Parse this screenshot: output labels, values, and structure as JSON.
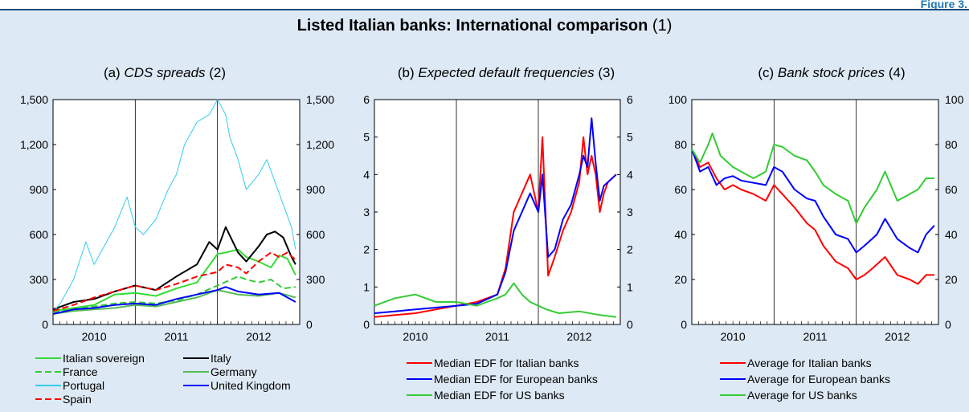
{
  "figure_label": "Figure 3.",
  "title": {
    "bold": "Listed Italian banks: International comparison",
    "suffix": "(1)"
  },
  "panels": [
    {
      "title_prefix": "(a)",
      "title_italic": "CDS spreads",
      "title_suffix": "(2)"
    },
    {
      "title_prefix": "(b)",
      "title_italic": "Expected default frequencies",
      "title_suffix": "(3)"
    },
    {
      "title_prefix": "(c)",
      "title_italic": "Bank stock prices",
      "title_suffix": "(4)"
    }
  ],
  "colors": {
    "background": "#dde9f5",
    "rule": "#1b4d7a",
    "red": "#ff0000",
    "blue": "#0000ff",
    "green": "#33cc33",
    "black": "#000000",
    "cyan": "#33ccee",
    "light_green": "#55dd55"
  },
  "chart_data": [
    {
      "type": "line",
      "title": "(a) CDS spreads (2)",
      "xlim": [
        2009.5,
        2012.5
      ],
      "ylim": [
        0,
        1500
      ],
      "yticks": [
        "0",
        "300",
        "600",
        "900",
        "1,200",
        "1,500"
      ],
      "right_yticks": [
        "0",
        "300",
        "600",
        "900",
        "1,200",
        "1,500"
      ],
      "xticks": [
        "2010",
        "2011",
        "2012"
      ],
      "grid": true,
      "legend_position": "bottom",
      "series": [
        {
          "name": "Italian sovereign",
          "color": "#33dd33",
          "dash": "solid",
          "x": [
            2009.5,
            2009.75,
            2010.0,
            2010.25,
            2010.5,
            2010.75,
            2011.0,
            2011.25,
            2011.5,
            2011.6,
            2011.75,
            2011.85,
            2012.0,
            2012.15,
            2012.25,
            2012.35,
            2012.45
          ],
          "values": [
            90,
            110,
            130,
            200,
            210,
            190,
            240,
            280,
            470,
            480,
            500,
            450,
            420,
            380,
            460,
            440,
            330
          ]
        },
        {
          "name": "Italy",
          "color": "#000000",
          "dash": "solid",
          "x": [
            2009.5,
            2009.75,
            2010.0,
            2010.25,
            2010.5,
            2010.75,
            2011.0,
            2011.25,
            2011.4,
            2011.5,
            2011.6,
            2011.75,
            2011.85,
            2012.0,
            2012.1,
            2012.2,
            2012.3,
            2012.4,
            2012.45
          ],
          "values": [
            100,
            150,
            170,
            220,
            260,
            230,
            320,
            400,
            550,
            500,
            650,
            480,
            420,
            520,
            600,
            620,
            580,
            450,
            400
          ]
        },
        {
          "name": "France",
          "color": "#33cc33",
          "dash": "dash",
          "x": [
            2009.5,
            2009.75,
            2010.0,
            2010.25,
            2010.5,
            2010.75,
            2011.0,
            2011.25,
            2011.5,
            2011.75,
            2011.85,
            2012.0,
            2012.15,
            2012.3,
            2012.45
          ],
          "values": [
            80,
            100,
            120,
            140,
            150,
            140,
            160,
            200,
            260,
            320,
            300,
            280,
            300,
            240,
            250
          ]
        },
        {
          "name": "Germany",
          "color": "#55bb55",
          "dash": "solid",
          "x": [
            2009.5,
            2009.75,
            2010.0,
            2010.25,
            2010.5,
            2010.75,
            2011.0,
            2011.25,
            2011.5,
            2011.75,
            2012.0,
            2012.25,
            2012.45
          ],
          "values": [
            70,
            90,
            100,
            110,
            130,
            120,
            150,
            180,
            230,
            200,
            190,
            210,
            180
          ]
        },
        {
          "name": "Portugal",
          "color": "#33ccee",
          "dash": "solid",
          "x": [
            2009.5,
            2009.6,
            2009.75,
            2009.9,
            2010.0,
            2010.1,
            2010.25,
            2010.4,
            2010.5,
            2010.6,
            2010.75,
            2010.9,
            2011.0,
            2011.1,
            2011.25,
            2011.4,
            2011.5,
            2011.6,
            2011.65,
            2011.75,
            2011.85,
            2012.0,
            2012.1,
            2012.2,
            2012.3,
            2012.4,
            2012.45
          ],
          "values": [
            80,
            150,
            300,
            550,
            400,
            500,
            650,
            850,
            650,
            600,
            700,
            900,
            1000,
            1200,
            1350,
            1400,
            1500,
            1400,
            1250,
            1100,
            900,
            1000,
            1100,
            950,
            800,
            650,
            500
          ]
        },
        {
          "name": "United Kingdom",
          "color": "#0000ff",
          "dash": "solid",
          "x": [
            2009.5,
            2009.75,
            2010.0,
            2010.25,
            2010.5,
            2010.75,
            2011.0,
            2011.25,
            2011.5,
            2011.6,
            2011.75,
            2012.0,
            2012.25,
            2012.45
          ],
          "values": [
            70,
            100,
            110,
            130,
            140,
            130,
            170,
            200,
            230,
            250,
            220,
            200,
            210,
            150
          ]
        },
        {
          "name": "Spain",
          "color": "#ff0000",
          "dash": "dash",
          "x": [
            2009.5,
            2009.75,
            2010.0,
            2010.25,
            2010.5,
            2010.75,
            2011.0,
            2011.25,
            2011.5,
            2011.6,
            2011.75,
            2011.85,
            2012.0,
            2012.15,
            2012.25,
            2012.35,
            2012.45
          ],
          "values": [
            90,
            130,
            180,
            220,
            260,
            230,
            270,
            320,
            350,
            400,
            380,
            340,
            420,
            480,
            450,
            480,
            430
          ]
        }
      ]
    },
    {
      "type": "line",
      "title": "(b) Expected default frequencies (3)",
      "xlim": [
        2009.5,
        2012.5
      ],
      "ylim": [
        0,
        6
      ],
      "yticks": [
        "0",
        "1",
        "2",
        "3",
        "4",
        "5",
        "6"
      ],
      "right_yticks": [
        "0",
        "1",
        "2",
        "3",
        "4",
        "5",
        "6"
      ],
      "xticks": [
        "2010",
        "2011",
        "2012"
      ],
      "grid": true,
      "legend_position": "bottom",
      "series": [
        {
          "name": "Median EDF for Italian banks",
          "color": "#ff0000",
          "dash": "solid",
          "x": [
            2009.5,
            2009.75,
            2010.0,
            2010.25,
            2010.5,
            2010.75,
            2011.0,
            2011.1,
            2011.2,
            2011.3,
            2011.4,
            2011.5,
            2011.55,
            2011.62,
            2011.7,
            2011.8,
            2011.9,
            2012.0,
            2012.05,
            2012.1,
            2012.15,
            2012.2,
            2012.25,
            2012.3,
            2012.35,
            2012.45
          ],
          "values": [
            0.2,
            0.25,
            0.3,
            0.4,
            0.5,
            0.6,
            0.8,
            1.5,
            3.0,
            3.5,
            4.0,
            3.0,
            5.0,
            1.3,
            1.8,
            2.5,
            3.0,
            3.8,
            5.0,
            4.0,
            4.5,
            4.0,
            3.0,
            3.5,
            3.8,
            4.0
          ]
        },
        {
          "name": "Median EDF for European banks",
          "color": "#0000ff",
          "dash": "solid",
          "x": [
            2009.5,
            2009.75,
            2010.0,
            2010.25,
            2010.5,
            2010.75,
            2011.0,
            2011.1,
            2011.2,
            2011.3,
            2011.4,
            2011.5,
            2011.55,
            2011.62,
            2011.7,
            2011.8,
            2011.9,
            2012.0,
            2012.05,
            2012.1,
            2012.15,
            2012.2,
            2012.25,
            2012.3,
            2012.35,
            2012.45
          ],
          "values": [
            0.3,
            0.35,
            0.4,
            0.45,
            0.5,
            0.55,
            0.8,
            1.4,
            2.5,
            3.0,
            3.5,
            3.0,
            4.0,
            1.8,
            2.0,
            2.8,
            3.2,
            4.0,
            4.5,
            4.2,
            5.5,
            4.3,
            3.3,
            3.7,
            3.8,
            4.0
          ]
        },
        {
          "name": "Median EDF for US banks",
          "color": "#33cc33",
          "dash": "solid",
          "x": [
            2009.5,
            2009.75,
            2010.0,
            2010.25,
            2010.5,
            2010.75,
            2011.0,
            2011.1,
            2011.2,
            2011.3,
            2011.4,
            2011.5,
            2011.6,
            2011.75,
            2012.0,
            2012.25,
            2012.45
          ],
          "values": [
            0.5,
            0.7,
            0.8,
            0.6,
            0.6,
            0.5,
            0.7,
            0.8,
            1.1,
            0.8,
            0.6,
            0.5,
            0.4,
            0.3,
            0.35,
            0.25,
            0.2
          ]
        }
      ]
    },
    {
      "type": "line",
      "title": "(c) Bank stock prices (4)",
      "xlim": [
        2009.5,
        2012.5
      ],
      "ylim": [
        0,
        100
      ],
      "yticks": [
        "0",
        "20",
        "40",
        "60",
        "80",
        "100"
      ],
      "right_yticks": [
        "0",
        "20",
        "40",
        "60",
        "80",
        "100"
      ],
      "xticks": [
        "2010",
        "2011",
        "2012"
      ],
      "grid": true,
      "legend_position": "bottom",
      "series": [
        {
          "name": "Average for Italian banks",
          "color": "#ff0000",
          "dash": "solid",
          "x": [
            2009.5,
            2009.6,
            2009.7,
            2009.8,
            2009.9,
            2010.0,
            2010.1,
            2010.25,
            2010.4,
            2010.5,
            2010.6,
            2010.75,
            2010.9,
            2011.0,
            2011.1,
            2011.25,
            2011.4,
            2011.5,
            2011.6,
            2011.7,
            2011.85,
            2012.0,
            2012.15,
            2012.25,
            2012.35,
            2012.45
          ],
          "values": [
            78,
            70,
            72,
            65,
            60,
            62,
            60,
            58,
            55,
            62,
            58,
            52,
            45,
            42,
            35,
            28,
            25,
            20,
            22,
            25,
            30,
            22,
            20,
            18,
            22,
            22
          ]
        },
        {
          "name": "Average for European banks",
          "color": "#0000ff",
          "dash": "solid",
          "x": [
            2009.5,
            2009.6,
            2009.7,
            2009.8,
            2009.9,
            2010.0,
            2010.1,
            2010.25,
            2010.4,
            2010.5,
            2010.6,
            2010.75,
            2010.9,
            2011.0,
            2011.1,
            2011.25,
            2011.4,
            2011.5,
            2011.6,
            2011.75,
            2011.85,
            2012.0,
            2012.15,
            2012.25,
            2012.35,
            2012.45
          ],
          "values": [
            78,
            68,
            70,
            62,
            65,
            66,
            64,
            63,
            62,
            70,
            68,
            60,
            56,
            55,
            48,
            40,
            38,
            32,
            35,
            40,
            47,
            38,
            34,
            32,
            40,
            44
          ]
        },
        {
          "name": "Average for US banks",
          "color": "#33cc33",
          "dash": "solid",
          "x": [
            2009.5,
            2009.6,
            2009.7,
            2009.75,
            2009.85,
            2010.0,
            2010.1,
            2010.25,
            2010.4,
            2010.5,
            2010.6,
            2010.75,
            2010.9,
            2011.0,
            2011.1,
            2011.25,
            2011.4,
            2011.5,
            2011.6,
            2011.75,
            2011.85,
            2012.0,
            2012.15,
            2012.25,
            2012.35,
            2012.45
          ],
          "values": [
            78,
            72,
            80,
            85,
            75,
            70,
            68,
            65,
            68,
            80,
            79,
            75,
            73,
            68,
            62,
            58,
            55,
            45,
            52,
            60,
            68,
            55,
            58,
            60,
            65,
            65
          ]
        }
      ]
    }
  ]
}
